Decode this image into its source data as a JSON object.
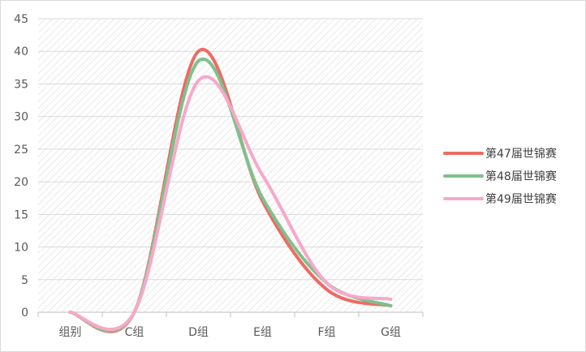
{
  "chart_data": {
    "type": "line",
    "title": "",
    "xlabel": "",
    "ylabel": "",
    "categories": [
      "组别",
      "C组",
      "D组",
      "E组",
      "F组",
      "G组"
    ],
    "y_ticks": [
      "0",
      "5",
      "10",
      "15",
      "20",
      "25",
      "30",
      "35",
      "40",
      "45"
    ],
    "ylim": [
      0,
      45
    ],
    "grid": true,
    "smooth": true,
    "legend_position": "right",
    "series": [
      {
        "name": "第47届世锦赛",
        "color": "#ed6b63",
        "values": [
          0,
          0,
          40,
          17,
          3.5,
          1
        ]
      },
      {
        "name": "第48届世锦赛",
        "color": "#7fc08d",
        "values": [
          0,
          0,
          38.5,
          17.5,
          4.5,
          1
        ]
      },
      {
        "name": "第49届世锦赛",
        "color": "#f7a8c9",
        "values": [
          0,
          0,
          35.5,
          21,
          4.5,
          2
        ]
      }
    ]
  }
}
